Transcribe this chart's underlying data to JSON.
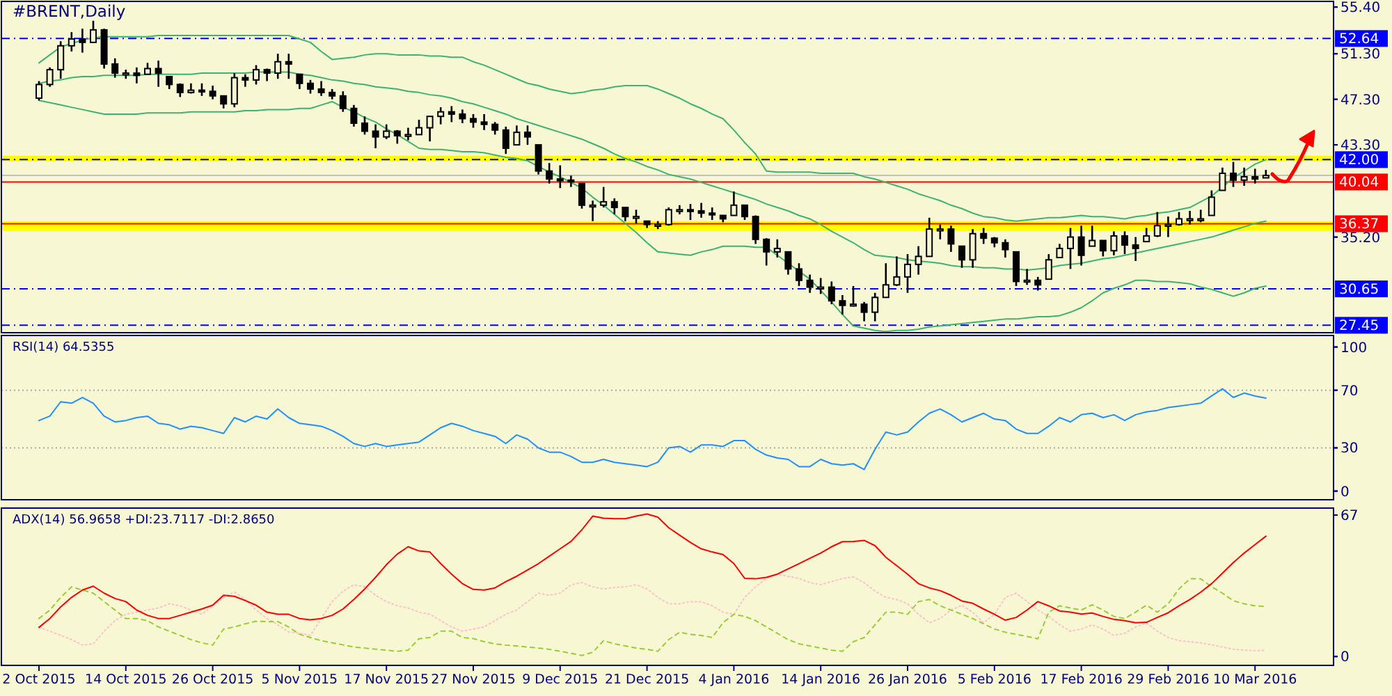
{
  "chart_data": [
    {
      "type": "candlestick",
      "title": "#BRENT,Daily",
      "tick_labels": "y",
      "ohlc": [
        [
          47.4,
          48.9,
          47.2,
          48.6
        ],
        [
          48.6,
          50.1,
          48.4,
          49.9
        ],
        [
          49.9,
          52.4,
          49.1,
          52.0
        ],
        [
          52.0,
          53.2,
          51.5,
          52.6
        ],
        [
          52.6,
          53.5,
          51.4,
          52.3
        ],
        [
          52.3,
          54.2,
          52.3,
          53.4
        ],
        [
          53.4,
          53.5,
          50.0,
          50.4
        ],
        [
          50.4,
          50.9,
          49.2,
          49.6
        ],
        [
          49.6,
          49.9,
          49.1,
          49.6
        ],
        [
          49.6,
          50.1,
          48.7,
          49.4
        ],
        [
          49.5,
          50.5,
          49.5,
          50.0
        ],
        [
          50.0,
          50.7,
          48.4,
          49.6
        ],
        [
          49.3,
          49.3,
          48.2,
          48.6
        ],
        [
          48.6,
          48.7,
          47.5,
          47.9
        ],
        [
          47.9,
          48.7,
          47.8,
          48.1
        ],
        [
          48.1,
          48.7,
          47.6,
          48.0
        ],
        [
          48.0,
          48.5,
          47.3,
          47.6
        ],
        [
          47.6,
          47.6,
          46.5,
          46.9
        ],
        [
          46.9,
          49.6,
          46.6,
          49.2
        ],
        [
          49.2,
          49.5,
          48.4,
          49.0
        ],
        [
          49.0,
          50.3,
          48.6,
          49.9
        ],
        [
          49.9,
          50.0,
          48.9,
          49.6
        ],
        [
          49.6,
          51.3,
          49.1,
          50.6
        ],
        [
          50.6,
          51.3,
          49.1,
          50.4
        ],
        [
          49.5,
          49.5,
          48.2,
          48.7
        ],
        [
          48.7,
          49.0,
          47.8,
          48.2
        ],
        [
          48.2,
          48.9,
          47.6,
          47.9
        ],
        [
          47.9,
          48.2,
          47.3,
          47.6
        ],
        [
          47.6,
          48.0,
          46.2,
          46.5
        ],
        [
          46.5,
          46.8,
          44.9,
          45.2
        ],
        [
          45.2,
          45.8,
          44.2,
          44.5
        ],
        [
          44.5,
          45.1,
          43.0,
          44.0
        ],
        [
          44.0,
          45.1,
          43.8,
          44.5
        ],
        [
          44.5,
          44.6,
          43.4,
          44.1
        ],
        [
          44.1,
          44.8,
          43.7,
          44.2
        ],
        [
          44.2,
          45.5,
          44.2,
          44.8
        ],
        [
          44.8,
          45.8,
          43.6,
          45.8
        ],
        [
          45.8,
          46.6,
          45.1,
          46.2
        ],
        [
          46.2,
          46.7,
          45.3,
          46.0
        ],
        [
          46.0,
          46.4,
          45.2,
          45.6
        ],
        [
          45.6,
          46.0,
          44.8,
          45.3
        ],
        [
          45.3,
          46.0,
          44.6,
          45.1
        ],
        [
          45.1,
          45.3,
          44.2,
          44.6
        ],
        [
          44.6,
          44.9,
          42.5,
          43.0
        ],
        [
          43.3,
          45.0,
          43.3,
          44.4
        ],
        [
          44.4,
          45.0,
          43.3,
          44.0
        ],
        [
          43.3,
          43.3,
          40.7,
          41.0
        ],
        [
          41.0,
          41.7,
          39.9,
          40.3
        ],
        [
          40.3,
          41.5,
          39.5,
          40.2
        ],
        [
          40.2,
          40.6,
          39.6,
          40.1
        ],
        [
          39.9,
          39.9,
          37.7,
          38.0
        ],
        [
          38.0,
          38.4,
          36.6,
          38.0
        ],
        [
          38.0,
          39.6,
          37.8,
          38.3
        ],
        [
          38.3,
          38.6,
          37.2,
          37.8
        ],
        [
          37.8,
          37.8,
          36.6,
          37.0
        ],
        [
          37.0,
          37.6,
          36.4,
          37.0
        ],
        [
          36.6,
          36.6,
          36.0,
          36.3
        ],
        [
          36.3,
          36.6,
          35.9,
          36.3
        ],
        [
          36.3,
          37.8,
          36.2,
          37.6
        ],
        [
          37.6,
          38.0,
          37.2,
          37.6
        ],
        [
          37.6,
          38.1,
          36.7,
          37.5
        ],
        [
          37.5,
          38.2,
          36.9,
          37.3
        ],
        [
          37.3,
          37.8,
          36.7,
          37.2
        ],
        [
          37.1,
          37.1,
          36.5,
          36.8
        ],
        [
          37.1,
          39.2,
          37.1,
          38.0
        ],
        [
          38.0,
          38.0,
          36.7,
          37.0
        ],
        [
          37.0,
          37.1,
          34.6,
          35.0
        ],
        [
          35.0,
          35.1,
          32.7,
          33.9
        ],
        [
          33.9,
          35.0,
          33.4,
          34.2
        ],
        [
          33.9,
          33.9,
          31.9,
          32.4
        ],
        [
          32.4,
          32.9,
          30.9,
          31.4
        ],
        [
          31.4,
          31.9,
          30.3,
          30.8
        ],
        [
          30.8,
          31.6,
          30.2,
          30.8
        ],
        [
          30.8,
          31.3,
          29.3,
          29.6
        ],
        [
          29.6,
          30.1,
          28.4,
          29.2
        ],
        [
          29.2,
          30.9,
          29.1,
          29.3
        ],
        [
          29.3,
          29.5,
          27.8,
          28.6
        ],
        [
          28.6,
          30.3,
          27.8,
          29.9
        ],
        [
          29.9,
          32.9,
          29.9,
          31.0
        ],
        [
          31.0,
          33.5,
          30.9,
          31.7
        ],
        [
          31.7,
          33.7,
          30.3,
          32.8
        ],
        [
          32.8,
          34.4,
          31.9,
          33.5
        ],
        [
          33.5,
          36.9,
          33.5,
          35.9
        ],
        [
          35.9,
          36.3,
          35.0,
          35.9
        ],
        [
          35.9,
          36.2,
          33.9,
          34.6
        ],
        [
          34.4,
          34.4,
          32.5,
          33.2
        ],
        [
          33.2,
          35.9,
          32.5,
          35.5
        ],
        [
          35.5,
          36.0,
          34.6,
          35.1
        ],
        [
          35.1,
          35.2,
          34.3,
          34.7
        ],
        [
          34.7,
          35.0,
          33.4,
          34.1
        ],
        [
          33.9,
          33.9,
          30.9,
          31.3
        ],
        [
          31.3,
          32.4,
          31.0,
          31.4
        ],
        [
          31.4,
          31.7,
          30.5,
          31.0
        ],
        [
          31.5,
          33.7,
          31.5,
          33.2
        ],
        [
          33.4,
          34.6,
          33.4,
          34.2
        ],
        [
          34.2,
          36.0,
          32.4,
          35.2
        ],
        [
          35.2,
          36.2,
          32.7,
          33.6
        ],
        [
          34.4,
          36.2,
          34.4,
          34.9
        ],
        [
          34.9,
          34.9,
          33.5,
          34.0
        ],
        [
          34.0,
          35.7,
          33.6,
          35.3
        ],
        [
          35.3,
          35.7,
          33.7,
          34.5
        ],
        [
          34.5,
          35.2,
          33.1,
          34.2
        ],
        [
          34.8,
          36.0,
          34.8,
          35.3
        ],
        [
          35.3,
          37.4,
          35.2,
          36.2
        ],
        [
          36.2,
          37.0,
          35.2,
          36.3
        ],
        [
          36.3,
          37.4,
          36.2,
          36.8
        ],
        [
          36.8,
          37.5,
          36.3,
          36.8
        ],
        [
          36.8,
          37.6,
          36.5,
          36.8
        ],
        [
          37.1,
          39.3,
          37.1,
          38.7
        ],
        [
          39.3,
          41.3,
          39.3,
          40.8
        ],
        [
          40.8,
          41.8,
          39.6,
          40.2
        ],
        [
          40.2,
          41.3,
          39.7,
          40.5
        ],
        [
          40.5,
          41.2,
          39.9,
          40.3
        ],
        [
          40.4,
          41.1,
          40.4,
          40.61
        ]
      ],
      "series": [
        {
          "type": "line",
          "color": "#3cb371",
          "values": [
            50.5,
            51.2,
            51.9,
            52.2,
            52.5,
            52.7,
            52.8,
            52.8,
            52.8,
            52.8,
            52.8,
            52.9,
            52.9,
            52.9,
            52.9,
            52.9,
            52.9,
            52.9,
            52.9,
            52.9,
            52.9,
            52.9,
            52.9,
            52.9,
            52.6,
            52.3,
            51.5,
            50.8,
            50.9,
            51.0,
            51.2,
            51.3,
            51.3,
            51.2,
            51.2,
            51.2,
            51.1,
            51.1,
            51.0,
            51.0,
            50.6,
            50.3,
            49.9,
            49.5,
            49.1,
            48.7,
            48.5,
            48.2,
            48.0,
            47.8,
            47.9,
            48.1,
            48.2,
            48.4,
            48.5,
            48.5,
            48.5,
            48.2,
            47.8,
            47.4,
            46.9,
            46.5,
            46.0,
            45.6,
            44.6,
            43.5,
            42.5,
            41.0,
            40.9,
            40.9,
            40.9,
            40.9,
            40.8,
            40.8,
            40.8,
            40.8,
            40.5,
            40.3,
            40.0,
            39.7,
            39.4,
            39.0,
            38.7,
            38.4,
            38.0,
            37.7,
            37.3,
            37.0,
            36.9,
            36.7,
            36.6,
            36.7,
            36.8,
            36.9,
            36.9,
            37.0,
            37.1,
            37.0,
            37.0,
            36.9,
            36.8,
            37.0,
            37.1,
            37.3,
            37.4,
            37.6,
            37.8,
            38.3,
            38.8,
            39.6,
            40.4,
            41.0,
            41.6,
            42.0
          ]
        },
        {
          "type": "line",
          "color": "#3cb371",
          "values": [
            48.7,
            48.9,
            49.0,
            49.2,
            49.3,
            49.3,
            49.4,
            49.4,
            49.4,
            49.4,
            49.5,
            49.5,
            49.5,
            49.5,
            49.5,
            49.6,
            49.6,
            49.6,
            49.6,
            49.6,
            49.7,
            49.7,
            49.7,
            49.7,
            49.5,
            49.4,
            49.2,
            49.0,
            48.9,
            48.7,
            48.6,
            48.4,
            48.3,
            48.2,
            48.0,
            47.9,
            47.7,
            47.6,
            47.4,
            47.1,
            46.9,
            46.6,
            46.3,
            46.0,
            45.6,
            45.3,
            45.0,
            44.7,
            44.4,
            44.1,
            43.8,
            43.4,
            43.0,
            42.5,
            42.1,
            41.8,
            41.4,
            41.1,
            40.7,
            40.5,
            40.3,
            40.0,
            39.7,
            39.4,
            39.1,
            38.8,
            38.5,
            38.1,
            37.8,
            37.5,
            37.1,
            36.8,
            36.3,
            35.7,
            35.2,
            34.7,
            34.1,
            33.6,
            33.5,
            33.4,
            33.2,
            33.1,
            33.0,
            32.9,
            32.7,
            32.6,
            32.6,
            32.5,
            32.5,
            32.4,
            32.4,
            32.3,
            32.4,
            32.5,
            32.7,
            32.8,
            32.9,
            33.1,
            33.3,
            33.4,
            33.6,
            33.8,
            34.0,
            34.2,
            34.4,
            34.6,
            34.8,
            35.0,
            35.2,
            35.5,
            35.8,
            36.1,
            36.4,
            36.6
          ]
        },
        {
          "type": "line",
          "color": "#3cb371",
          "values": [
            47.2,
            47.0,
            46.8,
            46.6,
            46.4,
            46.2,
            46.0,
            46.0,
            46.0,
            46.0,
            46.1,
            46.1,
            46.1,
            46.1,
            46.2,
            46.2,
            46.2,
            46.2,
            46.2,
            46.3,
            46.3,
            46.4,
            46.4,
            46.4,
            46.5,
            46.5,
            46.8,
            47.1,
            46.6,
            46.2,
            45.7,
            45.3,
            44.7,
            44.2,
            43.6,
            43.0,
            42.9,
            42.9,
            42.8,
            42.7,
            42.7,
            42.6,
            42.4,
            42.2,
            42.1,
            41.9,
            41.4,
            40.9,
            40.5,
            40.0,
            39.5,
            38.7,
            38.0,
            37.2,
            36.4,
            35.6,
            34.7,
            33.9,
            33.8,
            33.7,
            33.6,
            33.9,
            34.1,
            34.4,
            34.4,
            34.4,
            34.3,
            34.3,
            33.6,
            32.9,
            32.2,
            31.5,
            30.5,
            29.5,
            28.4,
            27.4,
            27.2,
            27.0,
            26.9,
            27.0,
            27.0,
            27.1,
            27.3,
            27.4,
            27.5,
            27.6,
            27.7,
            27.8,
            27.9,
            28.0,
            28.0,
            28.1,
            28.2,
            28.2,
            28.3,
            28.6,
            29.0,
            29.6,
            30.3,
            30.7,
            31.0,
            31.4,
            31.4,
            31.3,
            31.3,
            31.2,
            31.1,
            30.8,
            30.6,
            30.3,
            30.0,
            30.3,
            30.7,
            30.9
          ]
        }
      ],
      "ylim": [
        26.8,
        55.9
      ],
      "yticks": [
        {
          "value": 55.4,
          "label": "55.40"
        },
        {
          "value": 51.3,
          "label": "51.30"
        },
        {
          "value": 47.3,
          "label": "47.30"
        },
        {
          "value": 43.3,
          "label": "43.30"
        },
        {
          "value": 35.2,
          "label": "35.20"
        }
      ],
      "bands": [
        {
          "axis": "y",
          "from": 41.85,
          "to": 42.35,
          "color": "#ffff00"
        },
        {
          "axis": "y",
          "from": 35.75,
          "to": 36.6,
          "color": "#ffff00"
        }
      ],
      "ref_lines": [
        {
          "axis": "y",
          "value": 52.64,
          "label": "52.64",
          "color": "#0000ff",
          "line_style": "dashed"
        },
        {
          "axis": "y",
          "value": 42.0,
          "label": "42.00",
          "color": "#0000ff",
          "line_style": "dashed"
        },
        {
          "axis": "y",
          "value": 40.61,
          "color": "#c0c0c0",
          "line_style": "solid"
        },
        {
          "axis": "y",
          "value": 40.04,
          "label": "40.04",
          "color": "#ff0000",
          "line_style": "solid"
        },
        {
          "axis": "y",
          "value": 36.37,
          "label": "36.37",
          "color": "#ff0000",
          "line_style": "solid"
        },
        {
          "axis": "y",
          "value": 30.65,
          "label": "30.65",
          "color": "#0000ff",
          "line_style": "dashed"
        },
        {
          "axis": "y",
          "value": 27.45,
          "label": "27.45",
          "color": "#0000ff",
          "line_style": "dashed"
        }
      ]
    },
    {
      "type": "line",
      "title": "RSI(14) 64.5355",
      "tick_labels": "y",
      "series": [
        {
          "color": "#1e90ff",
          "values": [
            49,
            52,
            62,
            61,
            65,
            61,
            52,
            48,
            49,
            51,
            52,
            47,
            46,
            43,
            45,
            44,
            42,
            40,
            51,
            48,
            52,
            50,
            57,
            51,
            47,
            46,
            45,
            42,
            38,
            33,
            31,
            33,
            31,
            32,
            33,
            34,
            39,
            44,
            47,
            45,
            42,
            40,
            38,
            33,
            39,
            36,
            30,
            27,
            27,
            24,
            20,
            20,
            22,
            20,
            19,
            18,
            17,
            20,
            30,
            31,
            27,
            32,
            32,
            31,
            35,
            35,
            29,
            25,
            23,
            22,
            17,
            17,
            22,
            19,
            18,
            19,
            15,
            29,
            41,
            39,
            41,
            48,
            54,
            57,
            53,
            48,
            51,
            54,
            50,
            49,
            43,
            40,
            40,
            45,
            51,
            48,
            53,
            54,
            51,
            53,
            49,
            53,
            55,
            56,
            58,
            59,
            60,
            61,
            66,
            71,
            65,
            68,
            66,
            64.5
          ]
        }
      ],
      "ylim": [
        -6,
        108
      ],
      "yticks": [
        100,
        70,
        30,
        0
      ],
      "ref_lines": [
        {
          "axis": "y",
          "value": 70,
          "color": "#a9a9a9",
          "line_style": "dotted"
        },
        {
          "axis": "y",
          "value": 30,
          "color": "#a9a9a9",
          "line_style": "dotted"
        }
      ]
    },
    {
      "type": "line",
      "title": "ADX(14) 56.9658 +DI:23.7117 -DI:2.8650",
      "categories": [
        "2 Oct 2015",
        null,
        null,
        null,
        null,
        null,
        null,
        null,
        "14 Oct 2015",
        null,
        null,
        null,
        null,
        null,
        null,
        null,
        "26 Oct 2015",
        null,
        null,
        null,
        null,
        null,
        null,
        null,
        "5 Nov 2015",
        null,
        null,
        null,
        null,
        null,
        null,
        null,
        "17 Nov 2015",
        null,
        null,
        null,
        null,
        null,
        null,
        null,
        "27 Nov 2015",
        null,
        null,
        null,
        null,
        null,
        null,
        null,
        "9 Dec 2015",
        null,
        null,
        null,
        null,
        null,
        null,
        null,
        "21 Dec 2015",
        null,
        null,
        null,
        null,
        null,
        null,
        null,
        "4 Jan 2016",
        null,
        null,
        null,
        null,
        null,
        null,
        null,
        "14 Jan 2016",
        null,
        null,
        null,
        null,
        null,
        null,
        null,
        "26 Jan 2016",
        null,
        null,
        null,
        null,
        null,
        null,
        null,
        "5 Feb 2016",
        null,
        null,
        null,
        null,
        null,
        null,
        null,
        "17 Feb 2016",
        null,
        null,
        null,
        null,
        null,
        null,
        null,
        "29 Feb 2016",
        null,
        null,
        null,
        null,
        null,
        null,
        null,
        "10 Mar 2016",
        null
      ],
      "series": [
        {
          "color": "#ffc0cb",
          "line_style": "dotted",
          "values": [
            13.8,
            12,
            10,
            8,
            5.4,
            6,
            12,
            17,
            20,
            21,
            22,
            23,
            25,
            24,
            22,
            20,
            24,
            28,
            30.5,
            27,
            22,
            18,
            15,
            11.7,
            11,
            10,
            18,
            26,
            31,
            34,
            33,
            29,
            26,
            24,
            23,
            21,
            20,
            17,
            14,
            12,
            13,
            14,
            17,
            20,
            22,
            26,
            30,
            29,
            30,
            34,
            35,
            33,
            32,
            32.7,
            33,
            34,
            32,
            28,
            25,
            25,
            26,
            26,
            24,
            21,
            20,
            28,
            33,
            37,
            39,
            38,
            37,
            35,
            34,
            35.5,
            37,
            37.7,
            35,
            31,
            28,
            27,
            25,
            20,
            16,
            18,
            22,
            24.3,
            21,
            16,
            20,
            28,
            30,
            26,
            22,
            19,
            15,
            12,
            13,
            15,
            13,
            10,
            11,
            14,
            15.9,
            12,
            9,
            7.5,
            7,
            6.5,
            5.5,
            4.5,
            3.5,
            3,
            2.8,
            2.9
          ]
        },
        {
          "color": "#9acd32",
          "line_style": "dashed",
          "values": [
            18,
            22,
            28,
            33,
            31.5,
            30,
            26,
            22,
            18,
            18,
            17,
            14,
            12,
            10,
            8,
            6.5,
            5.4,
            13,
            14,
            15.5,
            16.7,
            16.5,
            16.5,
            14,
            10.5,
            9,
            7.5,
            6.5,
            5.5,
            4.5,
            4,
            3.5,
            3,
            2.5,
            3,
            8.4,
            9,
            12,
            12,
            9,
            8.5,
            7,
            6,
            5.4,
            5,
            4.5,
            4,
            3.4,
            2.5,
            1.5,
            0.5,
            2,
            7.5,
            6,
            5,
            4,
            3.4,
            2.5,
            8,
            11.5,
            10.5,
            10,
            9,
            16,
            20,
            19,
            17,
            14,
            11,
            8,
            6,
            5,
            4,
            3,
            2.5,
            7,
            9,
            15,
            21,
            21,
            20,
            26,
            27,
            24,
            22,
            20,
            18,
            15.5,
            13,
            11.5,
            10.5,
            9.5,
            8.4,
            21,
            24,
            23,
            22,
            24.5,
            22,
            19,
            18,
            21,
            24.3,
            21,
            25,
            32,
            36.8,
            36.8,
            33,
            30,
            26.4,
            25,
            24,
            23.7
          ]
        },
        {
          "color": "#ff0000",
          "line_style": "solid",
          "values": [
            13.8,
            18,
            23.5,
            28,
            31.5,
            33.3,
            30,
            27.5,
            26,
            22,
            19.5,
            18,
            18,
            19.5,
            21,
            22.5,
            24.3,
            29,
            28.5,
            26.5,
            24.3,
            21,
            20,
            20,
            18,
            17.4,
            18,
            19.5,
            22.5,
            27,
            32,
            37.5,
            43.5,
            48.5,
            52,
            50,
            49.5,
            44,
            39,
            34.5,
            31.8,
            31.5,
            32.5,
            35.5,
            38,
            41,
            44,
            47.5,
            51,
            54.5,
            60,
            66.5,
            65.5,
            65.3,
            65.3,
            66.5,
            67.5,
            66,
            61,
            57.5,
            54,
            51,
            49.5,
            48.3,
            44,
            37,
            36.8,
            37.5,
            39,
            41.5,
            44,
            46.5,
            49,
            52,
            54.4,
            54.5,
            55,
            52.5,
            47,
            43,
            39,
            34.5,
            32.5,
            31.2,
            29,
            26.3,
            25.2,
            22.5,
            20,
            17.2,
            18.5,
            22,
            26,
            24,
            21.6,
            21,
            20.1,
            20.6,
            19,
            17.6,
            17,
            16,
            16.2,
            18.5,
            20.7,
            24,
            27,
            30.5,
            34.5,
            39.5,
            44.5,
            49,
            53,
            57.0
          ]
        }
      ],
      "ylim": [
        -4.2,
        70.3
      ],
      "yticks": [
        67,
        0
      ]
    }
  ]
}
